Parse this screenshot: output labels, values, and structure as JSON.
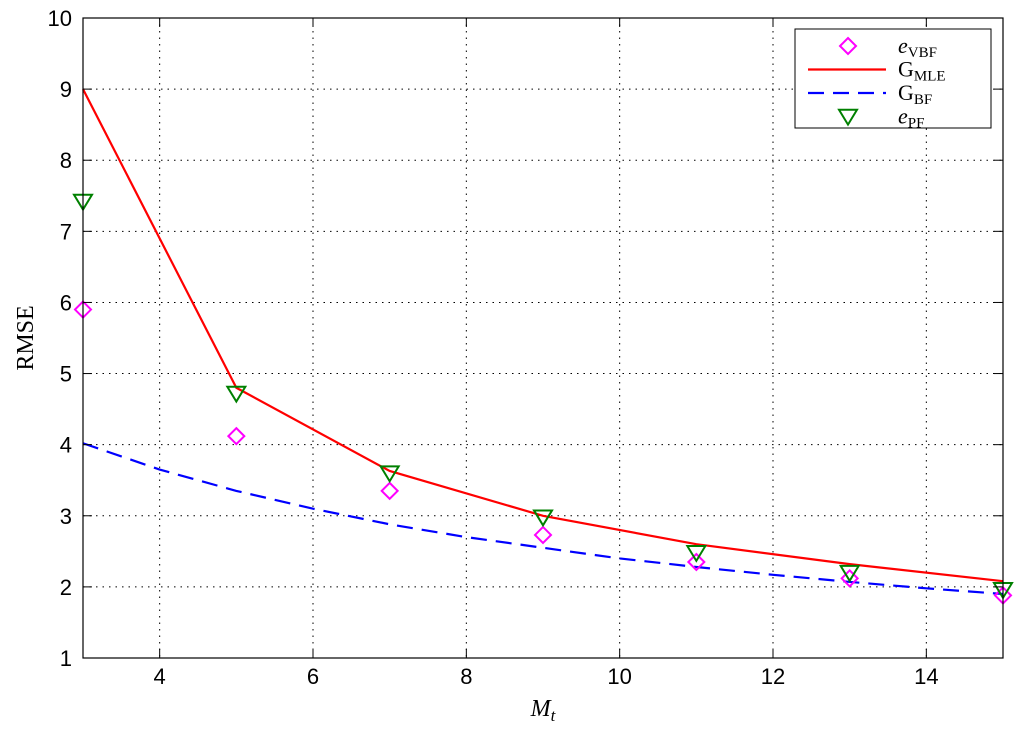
{
  "chart_data": {
    "type": "line",
    "xlabel": "M",
    "xlabel_sub": "t",
    "ylabel": "RMSE",
    "xlim": [
      3,
      15
    ],
    "ylim": [
      1,
      10
    ],
    "xticks": [
      4,
      6,
      8,
      10,
      12,
      14
    ],
    "yticks": [
      1,
      2,
      3,
      4,
      5,
      6,
      7,
      8,
      9,
      10
    ],
    "grid": true,
    "legend_position": "top-right",
    "series": [
      {
        "key": "vbf",
        "name": "e",
        "name_sub": "VBF",
        "style": "diamond-marker",
        "color": "#ff00ff",
        "x": [
          3,
          5,
          7,
          9,
          11,
          13,
          15
        ],
        "y": [
          5.9,
          4.12,
          3.35,
          2.73,
          2.35,
          2.12,
          1.88
        ]
      },
      {
        "key": "mle",
        "name": "G",
        "name_sub": "MLE",
        "style": "solid-line",
        "color": "#ff0000",
        "x": [
          3,
          5,
          7,
          9,
          11,
          13,
          15
        ],
        "y": [
          9.0,
          4.8,
          3.63,
          3.0,
          2.6,
          2.32,
          2.08
        ]
      },
      {
        "key": "bf",
        "name": "G",
        "name_sub": "BF",
        "style": "dashed-line",
        "color": "#0000ff",
        "x": [
          3,
          4,
          5,
          6,
          7,
          8,
          9,
          10,
          11,
          12,
          13,
          14,
          15
        ],
        "y": [
          4.02,
          3.65,
          3.35,
          3.1,
          2.88,
          2.7,
          2.55,
          2.4,
          2.28,
          2.17,
          2.07,
          1.98,
          1.9
        ]
      },
      {
        "key": "pf",
        "name": "e",
        "name_sub": "PF",
        "style": "triangle-down-marker",
        "color": "#008000",
        "x": [
          3,
          5,
          7,
          9,
          11,
          13,
          15
        ],
        "y": [
          7.42,
          4.72,
          3.6,
          2.98,
          2.48,
          2.2,
          1.96
        ]
      }
    ]
  }
}
